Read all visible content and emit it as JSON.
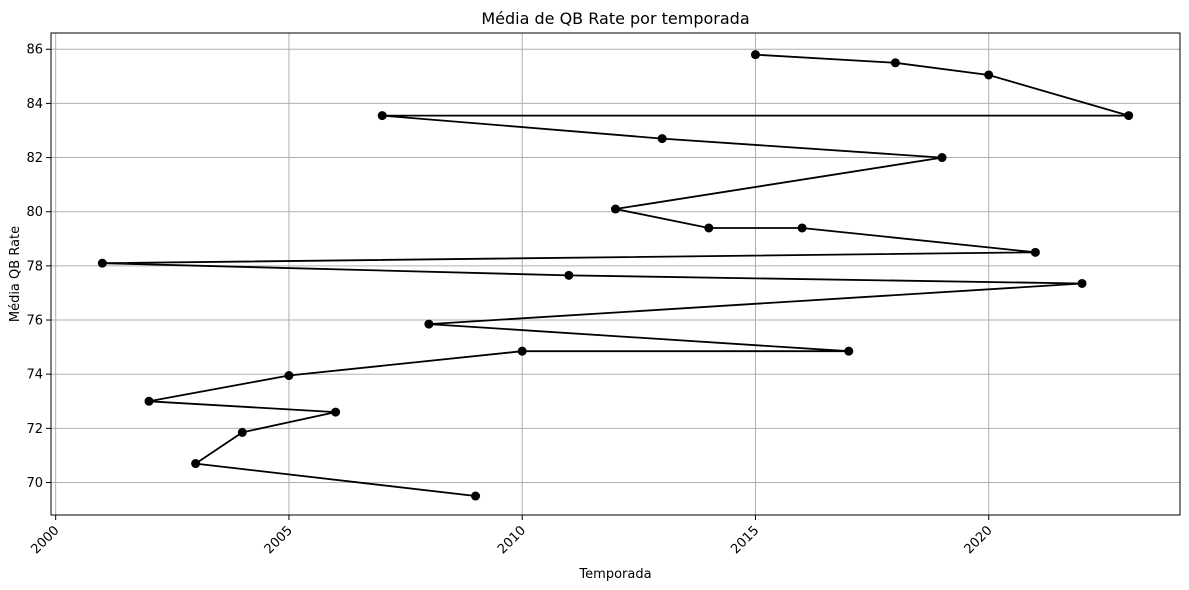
{
  "chart_data": {
    "type": "line",
    "title": "Média de QB Rate por temporada",
    "xlabel": "Temporada",
    "ylabel": "Média QB Rate",
    "xlim": [
      1999.9,
      2024.1
    ],
    "ylim": [
      68.8,
      86.6
    ],
    "xticks": [
      "2000",
      "2005",
      "2010",
      "2015",
      "2020"
    ],
    "xtick_values": [
      2000,
      2005,
      2010,
      2015,
      2020
    ],
    "yticks": [
      "70",
      "72",
      "74",
      "76",
      "78",
      "80",
      "82",
      "84",
      "86"
    ],
    "ytick_values": [
      70,
      72,
      74,
      76,
      78,
      80,
      82,
      84,
      86
    ],
    "grid": true,
    "line_color": "#000000",
    "marker": "circle",
    "series": [
      {
        "x": [
          2015,
          2018,
          2020,
          2023,
          2007,
          2013,
          2019,
          2012,
          2014,
          2016,
          2021,
          2001,
          2011,
          2022,
          2008,
          2017,
          2010,
          2005,
          2002,
          2006,
          2004,
          2003,
          2009
        ],
        "y": [
          85.8,
          85.5,
          85.05,
          83.55,
          83.55,
          82.7,
          82.0,
          80.1,
          79.4,
          79.4,
          78.5,
          78.1,
          77.65,
          77.35,
          75.85,
          74.85,
          74.85,
          73.95,
          73.0,
          72.6,
          71.85,
          70.7,
          69.5
        ]
      }
    ]
  }
}
